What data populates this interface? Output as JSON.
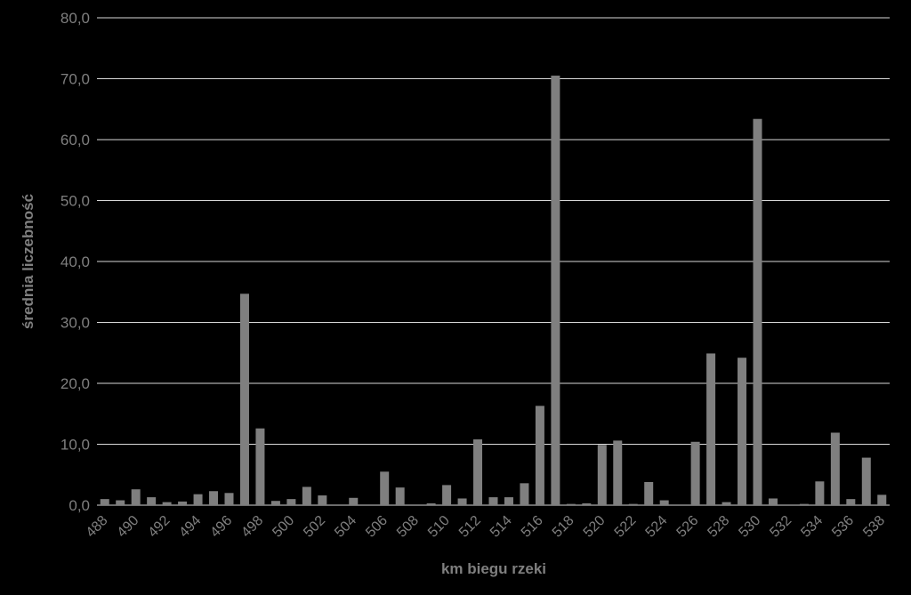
{
  "colors": {
    "background": "#000000",
    "bar": "#7f7f7f",
    "grid": "#d9d9d9",
    "text": "#7f7f7f"
  },
  "chart_data": {
    "type": "bar",
    "title": "",
    "xlabel": "km biegu rzeki",
    "ylabel": "średnia liczebność",
    "ylim": [
      0,
      80
    ],
    "yticks": [
      "0,0",
      "10,0",
      "20,0",
      "30,0",
      "40,0",
      "50,0",
      "60,0",
      "70,0",
      "80,0"
    ],
    "grid": true,
    "legend": "none",
    "categories": [
      "488",
      "489",
      "490",
      "491",
      "492",
      "493",
      "494",
      "495",
      "496",
      "497",
      "498",
      "499",
      "500",
      "501",
      "502",
      "503",
      "504",
      "505",
      "506",
      "507",
      "508",
      "509",
      "510",
      "511",
      "512",
      "513",
      "514",
      "515",
      "516",
      "517",
      "518",
      "519",
      "520",
      "521",
      "522",
      "523",
      "524",
      "525",
      "526",
      "527",
      "528",
      "529",
      "530",
      "531",
      "532",
      "533",
      "534",
      "535",
      "536",
      "537",
      "538"
    ],
    "xticklabels": [
      "488",
      "490",
      "492",
      "494",
      "496",
      "498",
      "500",
      "502",
      "504",
      "506",
      "508",
      "510",
      "512",
      "514",
      "516",
      "518",
      "520",
      "522",
      "524",
      "526",
      "528",
      "530",
      "532",
      "534",
      "536",
      "538"
    ],
    "values": [
      1.0,
      0.8,
      2.6,
      1.3,
      0.5,
      0.6,
      1.8,
      2.3,
      2.0,
      34.7,
      12.6,
      0.7,
      1.0,
      3.0,
      1.6,
      0.0,
      1.2,
      0.0,
      5.5,
      2.9,
      0.0,
      0.3,
      3.3,
      1.1,
      10.8,
      1.3,
      1.3,
      3.6,
      16.3,
      70.5,
      0.2,
      0.3,
      9.9,
      10.6,
      0.2,
      3.8,
      0.8,
      0.0,
      10.4,
      24.9,
      0.5,
      24.2,
      63.4,
      1.1,
      0.0,
      0.2,
      3.9,
      11.9,
      1.0,
      7.8,
      1.7
    ]
  }
}
